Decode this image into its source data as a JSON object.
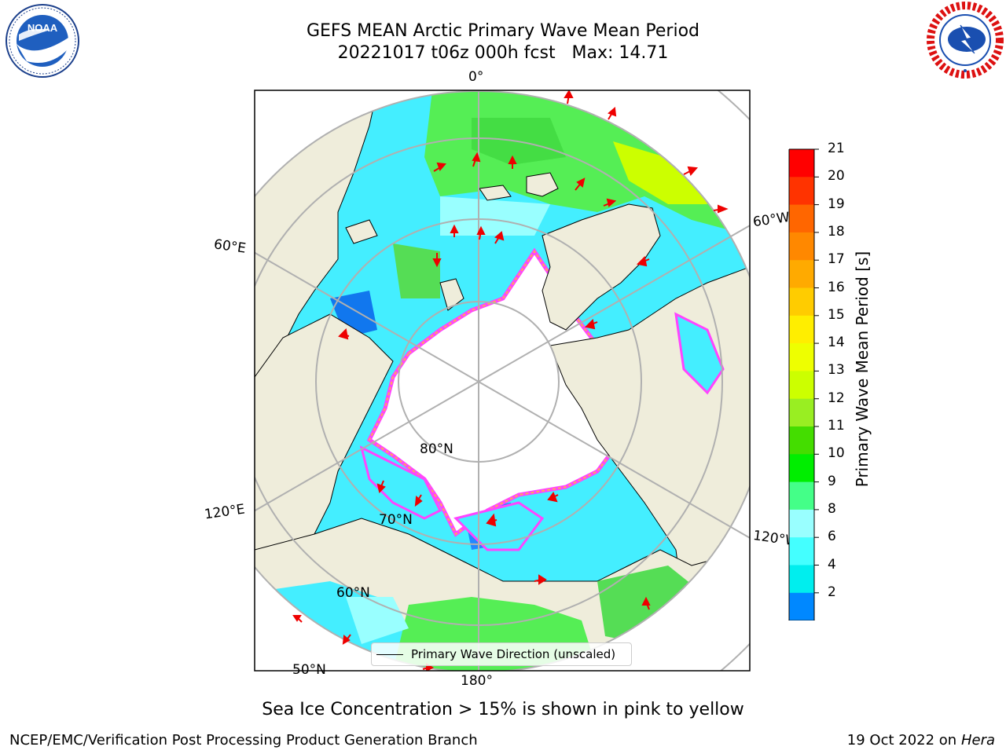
{
  "title": {
    "line1": "GEFS MEAN Arctic Primary Wave Mean Period",
    "line2": "20221017 t06z 000h fcst   Max: 14.71"
  },
  "map": {
    "projection": "north-polar-stereographic",
    "longitude_labels": [
      "0°",
      "60°W",
      "120°W",
      "180°",
      "120°E",
      "60°E"
    ],
    "latitude_labels": [
      "80°N",
      "70°N",
      "60°N",
      "50°N"
    ],
    "land_color": "#efeddb",
    "ocean_fill": "wave-period colored",
    "ice_edge_colors": [
      "#ff44ff",
      "#ff88cc",
      "#ffaa55",
      "#ffdd44"
    ]
  },
  "legend": {
    "label": "Primary Wave Direction (unscaled)",
    "arrow_color": "#ff0000"
  },
  "colorbar": {
    "label": "Primary Wave Mean Period [s]",
    "ticks": [
      "21",
      "20",
      "19",
      "18",
      "17",
      "16",
      "15",
      "14",
      "13",
      "12",
      "11",
      "10",
      "9",
      "8",
      "6",
      "4",
      "2"
    ],
    "colors": [
      "#ff0000",
      "#ff3300",
      "#ff6600",
      "#ff8800",
      "#ffaa00",
      "#ffcc00",
      "#ffee00",
      "#eeff00",
      "#ccff00",
      "#99ee22",
      "#44dd00",
      "#00ee00",
      "#44ff88",
      "#99ffff",
      "#44ffff",
      "#00eeee",
      "#0088ff"
    ],
    "extend_min_color": "#0000ff"
  },
  "note": "Sea Ice Concentration > 15% is shown in pink to yellow",
  "footer": {
    "left": "NCEP/EMC/Verification Post Processing Product Generation Branch",
    "right_prefix": "19 Oct 2022 on ",
    "right_machine": "Hera"
  },
  "logos": {
    "noaa_text": "NOAA",
    "nws_text": "NATIONAL WEATHER SERVICE"
  }
}
